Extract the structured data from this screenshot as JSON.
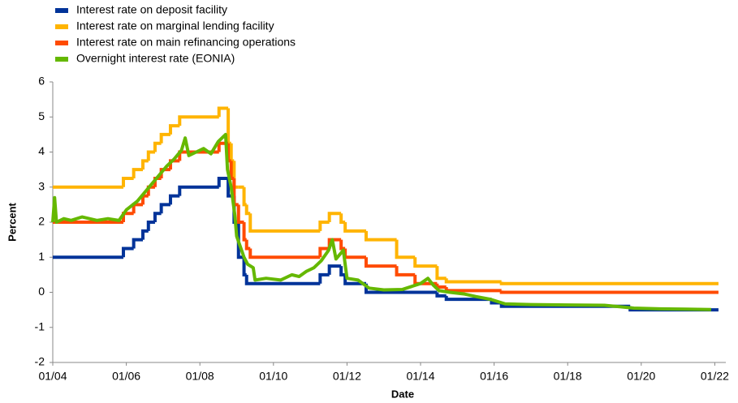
{
  "chart_data": {
    "type": "line",
    "xlabel": "Date",
    "ylabel": "Percent",
    "xlim": [
      2004,
      2022.3
    ],
    "ylim": [
      -2,
      6
    ],
    "xticks": [
      {
        "value": 2004,
        "label": "01/04"
      },
      {
        "value": 2006,
        "label": "01/06"
      },
      {
        "value": 2008,
        "label": "01/08"
      },
      {
        "value": 2010,
        "label": "01/10"
      },
      {
        "value": 2012,
        "label": "01/12"
      },
      {
        "value": 2014,
        "label": "01/14"
      },
      {
        "value": 2016,
        "label": "01/16"
      },
      {
        "value": 2018,
        "label": "01/18"
      },
      {
        "value": 2020,
        "label": "01/20"
      },
      {
        "value": 2022,
        "label": "01/22"
      }
    ],
    "yticks": [
      -2,
      -1,
      0,
      1,
      2,
      3,
      4,
      5,
      6
    ],
    "legend": "top-left",
    "series": [
      {
        "name": "Interest rate on deposit facility",
        "color": "#003399",
        "drawstyle": "steps-post",
        "x": [
          2004,
          2005.92,
          2006.2,
          2006.45,
          2006.6,
          2006.78,
          2006.95,
          2007.2,
          2007.45,
          2008.52,
          2008.77,
          2008.85,
          2008.93,
          2009.05,
          2009.2,
          2009.27,
          2011.27,
          2011.52,
          2011.84,
          2011.95,
          2012.52,
          2014.45,
          2014.7,
          2015.93,
          2016.2,
          2019.7,
          2022.1
        ],
        "values": [
          1,
          1.25,
          1.5,
          1.75,
          2,
          2.25,
          2.5,
          2.75,
          3,
          3.25,
          2.75,
          2.75,
          2,
          1,
          0.5,
          0.25,
          0.5,
          0.75,
          0.5,
          0.25,
          0,
          -0.1,
          -0.2,
          -0.3,
          -0.4,
          -0.5,
          -0.5
        ]
      },
      {
        "name": "Interest rate on marginal lending facility",
        "color": "#ffb400",
        "drawstyle": "steps-post",
        "x": [
          2004,
          2005.92,
          2006.2,
          2006.45,
          2006.6,
          2006.78,
          2006.95,
          2007.2,
          2007.45,
          2008.52,
          2008.77,
          2008.85,
          2008.93,
          2009.05,
          2009.2,
          2009.27,
          2009.37,
          2011.27,
          2011.52,
          2011.84,
          2011.95,
          2012.52,
          2013.35,
          2013.85,
          2014.45,
          2014.7,
          2016.2,
          2022.1
        ],
        "values": [
          3,
          3.25,
          3.5,
          3.75,
          4,
          4.25,
          4.5,
          4.75,
          5,
          5.25,
          4.25,
          3.75,
          3,
          3,
          2.5,
          2.25,
          1.75,
          2,
          2.25,
          2,
          1.75,
          1.5,
          1,
          0.75,
          0.4,
          0.3,
          0.25,
          0.25
        ]
      },
      {
        "name": "Interest rate on main refinancing operations",
        "color": "#ff4b00",
        "drawstyle": "steps-post",
        "x": [
          2004,
          2005.92,
          2006.2,
          2006.45,
          2006.6,
          2006.78,
          2006.95,
          2007.2,
          2007.45,
          2008.52,
          2008.77,
          2008.85,
          2008.93,
          2009.05,
          2009.2,
          2009.27,
          2009.37,
          2011.27,
          2011.52,
          2011.84,
          2011.95,
          2012.52,
          2013.35,
          2013.85,
          2014.45,
          2014.7,
          2016.2,
          2022.1
        ],
        "values": [
          2,
          2.25,
          2.5,
          2.75,
          3,
          3.25,
          3.5,
          3.75,
          4,
          4.25,
          3.75,
          3.25,
          2.5,
          2,
          1.5,
          1.25,
          1,
          1.25,
          1.5,
          1.25,
          1,
          0.75,
          0.5,
          0.25,
          0.15,
          0.05,
          0,
          0
        ]
      },
      {
        "name": "Overnight interest rate (EONIA)",
        "color": "#65b800",
        "x": [
          2004,
          2004.05,
          2004.1,
          2004.3,
          2004.5,
          2004.8,
          2005,
          2005.2,
          2005.5,
          2005.8,
          2006,
          2006.3,
          2006.5,
          2006.7,
          2006.9,
          2007.1,
          2007.3,
          2007.5,
          2007.6,
          2007.7,
          2007.9,
          2008.1,
          2008.3,
          2008.5,
          2008.7,
          2008.75,
          2008.85,
          2008.95,
          2009,
          2009.1,
          2009.2,
          2009.3,
          2009.45,
          2009.5,
          2009.8,
          2010.2,
          2010.5,
          2010.7,
          2010.9,
          2011.1,
          2011.3,
          2011.5,
          2011.6,
          2011.7,
          2011.9,
          2012,
          2012.3,
          2012.6,
          2013,
          2013.5,
          2014,
          2014.2,
          2014.35,
          2014.5,
          2014.8,
          2015.2,
          2015.5,
          2015.9,
          2016.3,
          2017,
          2018,
          2019,
          2019.8,
          2020.5,
          2021.2,
          2021.9
        ],
        "values": [
          2,
          2.7,
          2,
          2.1,
          2.05,
          2.15,
          2.1,
          2.05,
          2.1,
          2.05,
          2.35,
          2.6,
          2.85,
          3.1,
          3.35,
          3.6,
          3.8,
          4.05,
          4.4,
          3.9,
          4,
          4.1,
          3.95,
          4.3,
          4.5,
          3.5,
          3,
          2.2,
          1.6,
          1.3,
          1,
          0.8,
          0.7,
          0.35,
          0.4,
          0.35,
          0.5,
          0.45,
          0.6,
          0.7,
          0.9,
          1.2,
          1.5,
          0.95,
          1.2,
          0.4,
          0.35,
          0.12,
          0.07,
          0.08,
          0.25,
          0.4,
          0.2,
          0.05,
          0,
          -0.05,
          -0.12,
          -0.2,
          -0.33,
          -0.35,
          -0.36,
          -0.37,
          -0.45,
          -0.47,
          -0.48,
          -0.49
        ]
      }
    ]
  }
}
